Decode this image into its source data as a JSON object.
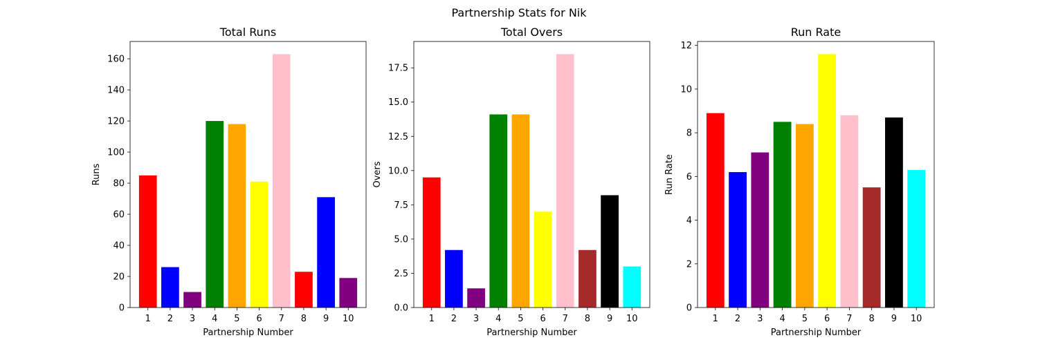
{
  "figure_title": "Partnership Stats for Nik",
  "chart_data": [
    {
      "type": "bar",
      "title": "Total Runs",
      "xlabel": "Partnership Number",
      "ylabel": "Runs",
      "categories": [
        "1",
        "2",
        "3",
        "4",
        "5",
        "6",
        "7",
        "8",
        "9",
        "10"
      ],
      "values": [
        85,
        26,
        10,
        120,
        118,
        81,
        163,
        23,
        71,
        19
      ],
      "colors": [
        "#ff0000",
        "#0000ff",
        "#800080",
        "#008000",
        "#ffa500",
        "#ffff00",
        "#ffc0cb",
        "#ff0000",
        "#0000ff",
        "#800080"
      ],
      "ylim": [
        0,
        171.15
      ],
      "yticks": [
        0,
        20,
        40,
        60,
        80,
        100,
        120,
        140,
        160
      ],
      "ytick_labels": [
        "0",
        "20",
        "40",
        "60",
        "80",
        "100",
        "120",
        "140",
        "160"
      ]
    },
    {
      "type": "bar",
      "title": "Total Overs",
      "xlabel": "Partnership Number",
      "ylabel": "Overs",
      "categories": [
        "1",
        "2",
        "3",
        "4",
        "5",
        "6",
        "7",
        "8",
        "9",
        "10"
      ],
      "values": [
        9.5,
        4.2,
        1.4,
        14.1,
        14.1,
        7.0,
        18.5,
        4.2,
        8.2,
        3.0
      ],
      "colors": [
        "#ff0000",
        "#0000ff",
        "#800080",
        "#008000",
        "#ffa500",
        "#ffff00",
        "#ffc0cb",
        "#a52a2a",
        "#000000",
        "#00ffff"
      ],
      "ylim": [
        0,
        19.425
      ],
      "yticks": [
        0,
        2.5,
        5,
        7.5,
        10,
        12.5,
        15,
        17.5
      ],
      "ytick_labels": [
        "0.0",
        "2.5",
        "5.0",
        "7.5",
        "10.0",
        "12.5",
        "15.0",
        "17.5"
      ]
    },
    {
      "type": "bar",
      "title": "Run Rate",
      "xlabel": "Partnership Number",
      "ylabel": "Run Rate",
      "categories": [
        "1",
        "2",
        "3",
        "4",
        "5",
        "6",
        "7",
        "8",
        "9",
        "10"
      ],
      "values": [
        8.9,
        6.2,
        7.1,
        8.5,
        8.4,
        11.6,
        8.8,
        5.5,
        8.7,
        6.3
      ],
      "colors": [
        "#ff0000",
        "#0000ff",
        "#800080",
        "#008000",
        "#ffa500",
        "#ffff00",
        "#ffc0cb",
        "#a52a2a",
        "#000000",
        "#00ffff"
      ],
      "ylim": [
        0,
        12.18
      ],
      "yticks": [
        0,
        2,
        4,
        6,
        8,
        10,
        12
      ],
      "ytick_labels": [
        "0",
        "2",
        "4",
        "6",
        "8",
        "10",
        "12"
      ]
    }
  ]
}
